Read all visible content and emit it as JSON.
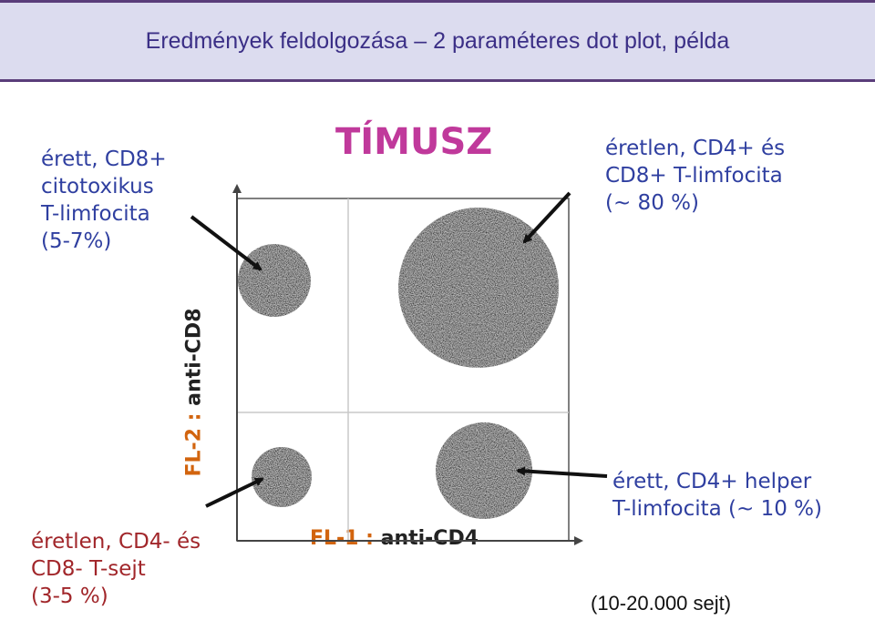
{
  "slide": {
    "title": "Eredmények feldolgozása – 2 paraméteres dot plot, példa"
  },
  "diagram": {
    "heading": "TÍMUSZ",
    "x_axis": {
      "prefix": "FL-1 : ",
      "label": "anti-CD4"
    },
    "y_axis": {
      "prefix": "FL-2 : ",
      "label": "anti-CD8"
    },
    "populations": {
      "top_left": "érett, CD8+\ncitotoxikus\nT-limfocita\n(5-7%)",
      "top_right": "éretlen, CD4+ és\nCD8+ T-limfocita\n(~ 80 %)",
      "bottom_left": "éretlen, CD4- és\nCD8- T-sejt\n(3-5 %)",
      "bottom_right": "érett, CD4+ helper\nT-limfocita (~ 10 %)"
    },
    "cell_count": "(10-20.000 sejt)"
  },
  "colors": {
    "title": "#3b2f86",
    "header_bg": "#dcdcef",
    "heading": "#c0399b",
    "blue_text": "#2f3fa0",
    "red_text": "#a1262a",
    "axis_prefix": "#d2640e"
  }
}
